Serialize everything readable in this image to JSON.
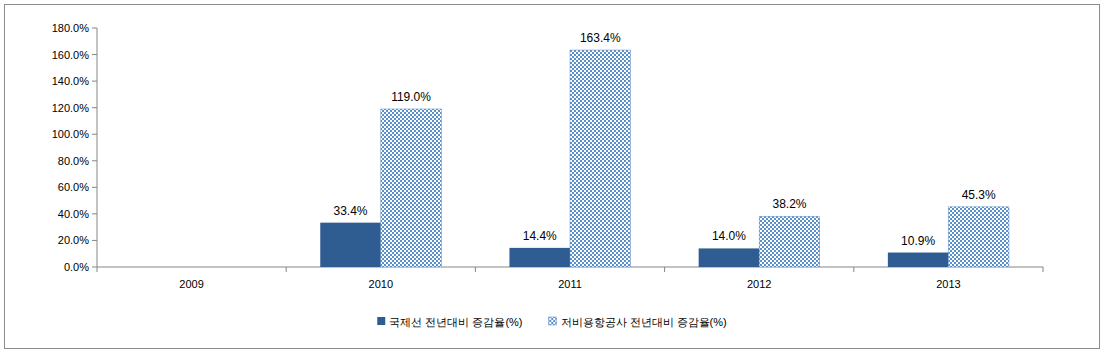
{
  "chart_data": {
    "type": "bar",
    "categories": [
      "2009",
      "2010",
      "2011",
      "2012",
      "2013"
    ],
    "series": [
      {
        "name": "국제선 전년대비 증감율(%)",
        "color": "#2f5d91",
        "values": [
          null,
          33.4,
          14.4,
          14.0,
          10.9
        ],
        "value_labels": [
          null,
          "33.4%",
          "14.4%",
          "14.0%",
          "10.9%"
        ]
      },
      {
        "name": "저비용항공사 전년대비 증감율(%)",
        "color": "#5b8fc9",
        "values": [
          null,
          119.0,
          163.4,
          38.2,
          45.3
        ],
        "value_labels": [
          null,
          "119.0%",
          "163.4%",
          "38.2%",
          "45.3%"
        ]
      }
    ],
    "ylim": [
      0,
      180
    ],
    "yticks": [
      {
        "value": 0,
        "label": "0.0%"
      },
      {
        "value": 20,
        "label": "20.0%"
      },
      {
        "value": 40,
        "label": "40.0%"
      },
      {
        "value": 60,
        "label": "60.0%"
      },
      {
        "value": 80,
        "label": "80.0%"
      },
      {
        "value": 100,
        "label": "100.0%"
      },
      {
        "value": 120,
        "label": "120.0%"
      },
      {
        "value": 140,
        "label": "140.0%"
      },
      {
        "value": 160,
        "label": "160.0%"
      },
      {
        "value": 180,
        "label": "180.0%"
      }
    ],
    "grid": false,
    "data_labels": true,
    "legend": "bottom"
  }
}
